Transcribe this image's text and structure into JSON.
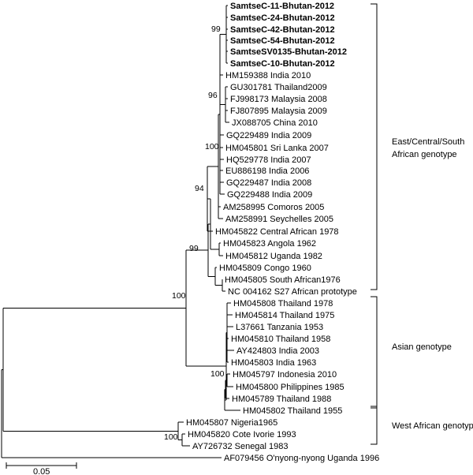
{
  "leaves": [
    {
      "id": "l1",
      "label": "SamtseC-11-Bhutan-2012",
      "bold": true
    },
    {
      "id": "l2",
      "label": "SamtseC-24-Bhutan-2012",
      "bold": true
    },
    {
      "id": "l3",
      "label": "SamtseC-42-Bhutan-2012",
      "bold": true
    },
    {
      "id": "l4",
      "label": "SamtseC-54-Bhutan-2012",
      "bold": true
    },
    {
      "id": "l5",
      "label": "SamtseSV0135-Bhutan-2012",
      "bold": true
    },
    {
      "id": "l6",
      "label": "SamtseC-10-Bhutan-2012",
      "bold": true
    },
    {
      "id": "l7",
      "label": "HM159388 India 2010",
      "bold": false
    },
    {
      "id": "l8",
      "label": "GU301781 Thailand2009",
      "bold": false
    },
    {
      "id": "l9",
      "label": "FJ998173 Malaysia 2008",
      "bold": false
    },
    {
      "id": "l10",
      "label": "FJ807895 Malaysia 2009",
      "bold": false
    },
    {
      "id": "l11",
      "label": "JX088705 China 2010",
      "bold": false
    },
    {
      "id": "l12",
      "label": "GQ229489 India 2009",
      "bold": false
    },
    {
      "id": "l13",
      "label": "HM045801 Sri Lanka 2007",
      "bold": false
    },
    {
      "id": "l14",
      "label": "HQ529778 India 2007",
      "bold": false
    },
    {
      "id": "l15",
      "label": "EU886198 India 2006",
      "bold": false
    },
    {
      "id": "l16",
      "label": "GQ229487 India 2008",
      "bold": false
    },
    {
      "id": "l17",
      "label": "GQ229488 India 2009",
      "bold": false
    },
    {
      "id": "l18",
      "label": "AM258995 Comoros 2005",
      "bold": false
    },
    {
      "id": "l19",
      "label": "AM258991 Seychelles 2005",
      "bold": false
    },
    {
      "id": "l20",
      "label": "HM045822 Central African 1978",
      "bold": false
    },
    {
      "id": "l21",
      "label": "HM045823 Angola 1962",
      "bold": false
    },
    {
      "id": "l22",
      "label": "HM045812 Uganda 1982",
      "bold": false
    },
    {
      "id": "l23",
      "label": "HM045809 Congo 1960",
      "bold": false
    },
    {
      "id": "l24",
      "label": "HM045805 South African1976",
      "bold": false
    },
    {
      "id": "l25",
      "label": "NC 004162 S27 African prototype",
      "bold": false
    },
    {
      "id": "l26",
      "label": "HM045808 Thailand 1978",
      "bold": false
    },
    {
      "id": "l27",
      "label": "HM045814 Thailand 1975",
      "bold": false
    },
    {
      "id": "l28",
      "label": "L37661 Tanzania 1953",
      "bold": false
    },
    {
      "id": "l29",
      "label": "HM045810 Thailand 1958",
      "bold": false
    },
    {
      "id": "l30",
      "label": "AY424803 India 2003",
      "bold": false
    },
    {
      "id": "l31",
      "label": "HM045803 India 1963",
      "bold": false
    },
    {
      "id": "l32",
      "label": "HM045797 Indonesia 2010",
      "bold": false
    },
    {
      "id": "l33",
      "label": "HM045800 Philippines 1985",
      "bold": false
    },
    {
      "id": "l34",
      "label": "HM045789 Thailand 1988",
      "bold": false
    },
    {
      "id": "l35",
      "label": "HM045802 Thailand 1955",
      "bold": false
    },
    {
      "id": "l36",
      "label": "HM045807 Nigeria1965",
      "bold": false
    },
    {
      "id": "l37",
      "label": "HM045820 Cote Ivorie 1993",
      "bold": false
    },
    {
      "id": "l38",
      "label": "AY726732 Senegal 1983",
      "bold": false
    },
    {
      "id": "l39",
      "label": "AF079456 O'nyong-nyong Uganda 1996",
      "bold": false
    }
  ],
  "bootstrap": [
    {
      "id": "b99a",
      "value": "99"
    },
    {
      "id": "b96",
      "value": "96"
    },
    {
      "id": "b100a",
      "value": "100"
    },
    {
      "id": "b94",
      "value": "94"
    },
    {
      "id": "b99b",
      "value": "99"
    },
    {
      "id": "b100b",
      "value": "100"
    },
    {
      "id": "b100c",
      "value": "100"
    },
    {
      "id": "b100d",
      "value": "100"
    }
  ],
  "groups": [
    {
      "id": "ecsa",
      "lines": [
        "East/Central/South",
        "African genotype"
      ]
    },
    {
      "id": "asian",
      "lines": [
        "Asian genotype"
      ]
    },
    {
      "id": "west",
      "lines": [
        "West African genotype"
      ]
    }
  ],
  "scale_bar": {
    "label": "0.05"
  }
}
